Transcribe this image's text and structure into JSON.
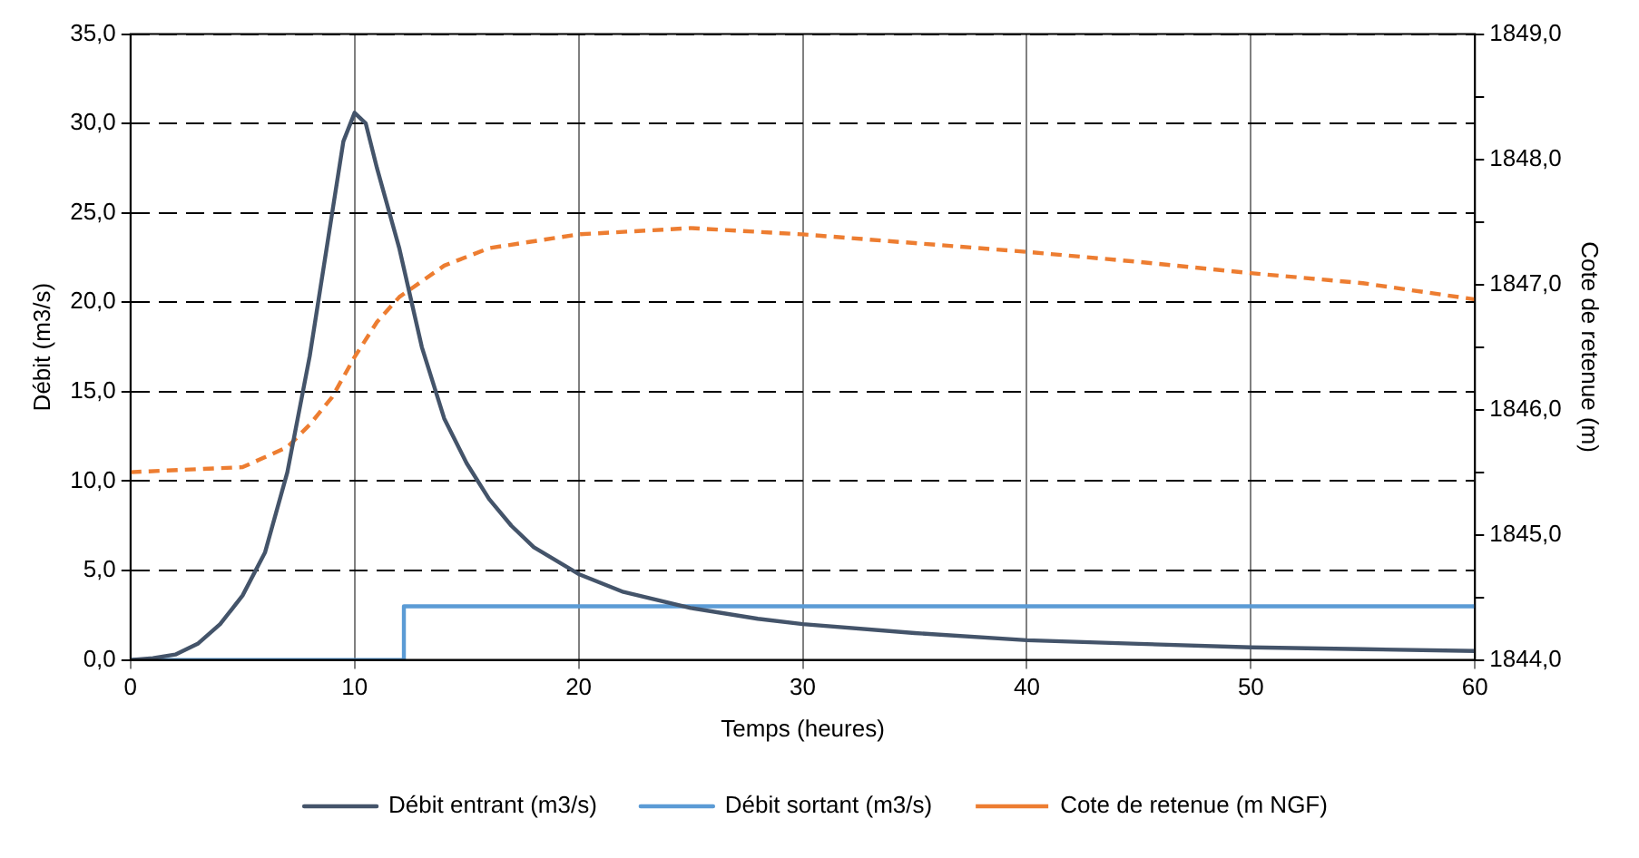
{
  "chart_data": {
    "type": "line",
    "xlabel": "Temps (heures)",
    "ylabel": "Débit (m3/s)",
    "y2label": "Cote de retenue (m)",
    "xlim": [
      0,
      60
    ],
    "xticks": [
      0,
      10,
      20,
      30,
      40,
      50,
      60
    ],
    "ylim": [
      0,
      35
    ],
    "yticks": [
      {
        "value": 0,
        "label": "0,0"
      },
      {
        "value": 5,
        "label": "5,0"
      },
      {
        "value": 10,
        "label": "10,0"
      },
      {
        "value": 15,
        "label": "15,0"
      },
      {
        "value": 20,
        "label": "20,0"
      },
      {
        "value": 25,
        "label": "25,0"
      },
      {
        "value": 30,
        "label": "30,0"
      },
      {
        "value": 35,
        "label": "35,0"
      }
    ],
    "y2lim": [
      1844,
      1849
    ],
    "y2ticks": [
      {
        "value": 1844,
        "label": "1844,0"
      },
      {
        "value": 1844.5,
        "label": null
      },
      {
        "value": 1845,
        "label": "1845,0"
      },
      {
        "value": 1845.5,
        "label": null
      },
      {
        "value": 1846,
        "label": "1846,0"
      },
      {
        "value": 1846.5,
        "label": null
      },
      {
        "value": 1847,
        "label": "1847,0"
      },
      {
        "value": 1847.5,
        "label": null
      },
      {
        "value": 1848,
        "label": "1848,0"
      },
      {
        "value": 1848.5,
        "label": null
      },
      {
        "value": 1849,
        "label": "1849,0"
      }
    ],
    "grid": true,
    "legend": "bottom",
    "marker": "none",
    "series": [
      {
        "name": "Débit entrant (m3/s)",
        "color": "#44546a",
        "line_style": "solid",
        "x": [
          0,
          1,
          2,
          3,
          4,
          5,
          6,
          7,
          8,
          9,
          9.5,
          10,
          10.5,
          11,
          12,
          13,
          14,
          15,
          16,
          17,
          18,
          20,
          22,
          25,
          28,
          30,
          35,
          40,
          45,
          50,
          55,
          60
        ],
        "values": [
          0,
          0.1,
          0.3,
          0.9,
          2.0,
          3.6,
          6.0,
          10.5,
          17,
          25,
          29,
          30.6,
          30,
          27.5,
          23,
          17.5,
          13.5,
          11,
          9,
          7.5,
          6.3,
          4.8,
          3.8,
          2.9,
          2.3,
          2.0,
          1.5,
          1.1,
          0.9,
          0.7,
          0.6,
          0.5
        ]
      },
      {
        "name": "Débit sortant (m3/s)",
        "color": "#5b9bd5",
        "line_style": "solid",
        "x": [
          0,
          12.2,
          12.2,
          60
        ],
        "values": [
          0,
          0,
          3,
          3
        ]
      },
      {
        "name": "Cote de retenue (m NGF)",
        "color": "#ed7d31",
        "line_style": "dashed",
        "axis": "y2",
        "x": [
          0,
          5,
          7,
          8,
          9,
          10,
          11,
          12,
          14,
          16,
          20,
          25,
          30,
          35,
          40,
          45,
          50,
          55,
          60
        ],
        "values": [
          1845.5,
          1845.54,
          1845.7,
          1845.88,
          1846.1,
          1846.42,
          1846.7,
          1846.9,
          1847.15,
          1847.29,
          1847.4,
          1847.45,
          1847.4,
          1847.33,
          1847.26,
          1847.18,
          1847.09,
          1847.01,
          1846.88
        ]
      }
    ]
  }
}
